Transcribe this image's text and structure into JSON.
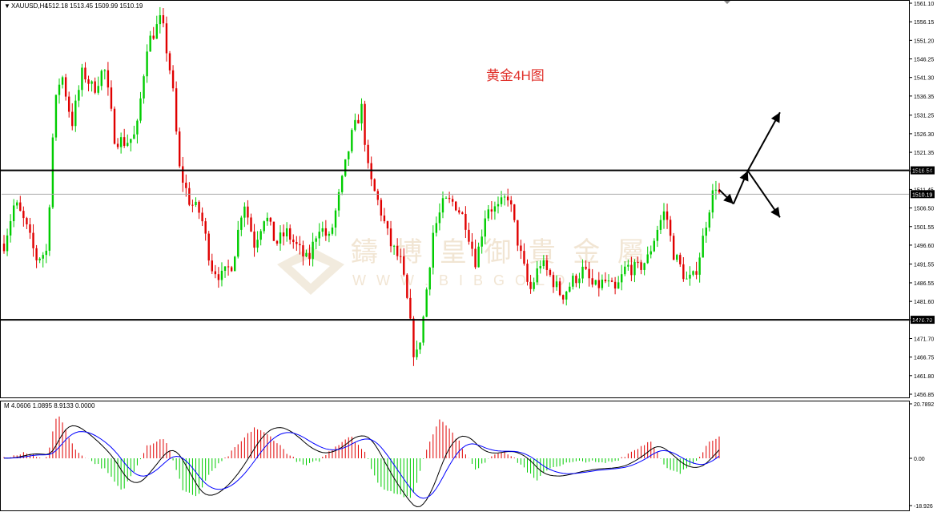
{
  "header": {
    "arrow": "▼",
    "symbol": "XAUUSD,H4",
    "ohlc": "1512.18 1513.45 1509.99 1510.19"
  },
  "annotation": {
    "text": "黄金4H图",
    "color": "#e0302a"
  },
  "watermark": {
    "text": "鑄 博 皇 御 貴 金 屬",
    "url": "W W W . B I B G O L D"
  },
  "indicator": {
    "label": "M 4.0606 1.0895 8.9133 0.0000",
    "ticks": [
      "20.7892",
      "0.00",
      "-18.926"
    ]
  },
  "colors": {
    "up": "#00cc00",
    "down": "#e00000",
    "macd_line": "#000000",
    "signal_line": "#0000ff",
    "level": "#000000"
  },
  "chart_data": {
    "type": "candlestick",
    "y_ticks": [
      "1561.10",
      "1556.15",
      "1551.20",
      "1546.25",
      "1541.30",
      "1536.35",
      "1531.25",
      "1526.30",
      "1521.35",
      "1516.40",
      "1511.45",
      "1506.50",
      "1501.55",
      "1496.60",
      "1491.55",
      "1486.55",
      "1481.60",
      "1476.70",
      "1471.70",
      "1466.75",
      "1461.80",
      "1456.85"
    ],
    "ylim": [
      1456.85,
      1561.1
    ],
    "levels": [
      {
        "value": 1516.54,
        "label": "1516.54"
      },
      {
        "value": 1476.7,
        "label": "1476.70"
      }
    ],
    "current_price": {
      "value": 1510.19,
      "label": "1510.19"
    },
    "forecast_arrows": [
      {
        "from": [
          [
            200,
            1511.4
          ],
          [
            204,
            1507.6
          ]
        ]
      },
      {
        "from": [
          [
            204,
            1507.6
          ],
          [
            208,
            1516.4
          ]
        ]
      },
      {
        "from": [
          [
            208,
            1516.4
          ],
          [
            217,
            1532.0
          ]
        ]
      },
      {
        "from": [
          [
            208,
            1516.4
          ],
          [
            217,
            1504.0
          ]
        ]
      }
    ],
    "anchors": [
      [
        0,
        1497
      ],
      [
        3,
        1508
      ],
      [
        6,
        1502
      ],
      [
        9,
        1493
      ],
      [
        12,
        1495
      ],
      [
        14,
        1532
      ],
      [
        16,
        1543
      ],
      [
        19,
        1529
      ],
      [
        22,
        1543
      ],
      [
        25,
        1538
      ],
      [
        28,
        1544
      ],
      [
        31,
        1525
      ],
      [
        34,
        1524
      ],
      [
        37,
        1526
      ],
      [
        40,
        1550
      ],
      [
        44,
        1557
      ],
      [
        47,
        1540
      ],
      [
        49,
        1517
      ],
      [
        52,
        1508
      ],
      [
        55,
        1505
      ],
      [
        58,
        1491
      ],
      [
        61,
        1488
      ],
      [
        64,
        1492
      ],
      [
        67,
        1509
      ],
      [
        70,
        1497
      ],
      [
        73,
        1505
      ],
      [
        76,
        1497
      ],
      [
        79,
        1500
      ],
      [
        82,
        1496
      ],
      [
        85,
        1492
      ],
      [
        88,
        1502
      ],
      [
        91,
        1498
      ],
      [
        94,
        1511
      ],
      [
        97,
        1525
      ],
      [
        100,
        1533
      ],
      [
        102,
        1515
      ],
      [
        105,
        1507
      ],
      [
        108,
        1497
      ],
      [
        111,
        1492
      ],
      [
        113,
        1480
      ],
      [
        115,
        1465
      ],
      [
        117,
        1475
      ],
      [
        120,
        1500
      ],
      [
        123,
        1508
      ],
      [
        126,
        1508
      ],
      [
        129,
        1503
      ],
      [
        132,
        1492
      ],
      [
        135,
        1507
      ],
      [
        138,
        1506
      ],
      [
        141,
        1510
      ],
      [
        144,
        1496
      ],
      [
        147,
        1484
      ],
      [
        150,
        1492
      ],
      [
        153,
        1488
      ],
      [
        156,
        1483
      ],
      [
        159,
        1487
      ],
      [
        162,
        1490
      ],
      [
        165,
        1485
      ],
      [
        168,
        1487
      ],
      [
        171,
        1484
      ],
      [
        174,
        1491
      ],
      [
        177,
        1490
      ],
      [
        180,
        1493
      ],
      [
        183,
        1502
      ],
      [
        185,
        1506
      ],
      [
        187,
        1495
      ],
      [
        189,
        1491
      ],
      [
        191,
        1487
      ],
      [
        193,
        1488
      ],
      [
        195,
        1496
      ],
      [
        197,
        1506
      ],
      [
        199,
        1513
      ],
      [
        200,
        1510.19
      ]
    ],
    "macd_anchors": [
      [
        0,
        0
      ],
      [
        6,
        2
      ],
      [
        12,
        0
      ],
      [
        15,
        18
      ],
      [
        20,
        3
      ],
      [
        28,
        -4
      ],
      [
        33,
        -13
      ],
      [
        37,
        -3
      ],
      [
        40,
        5
      ],
      [
        45,
        8
      ],
      [
        50,
        -12
      ],
      [
        54,
        -15
      ],
      [
        58,
        -5
      ],
      [
        62,
        0
      ],
      [
        66,
        6
      ],
      [
        70,
        12
      ],
      [
        75,
        8
      ],
      [
        80,
        1
      ],
      [
        84,
        -3
      ],
      [
        88,
        -1
      ],
      [
        93,
        5
      ],
      [
        97,
        9
      ],
      [
        101,
        2
      ],
      [
        105,
        -11
      ],
      [
        109,
        -13
      ],
      [
        114,
        -16
      ],
      [
        118,
        3
      ],
      [
        122,
        16
      ],
      [
        127,
        7
      ],
      [
        132,
        -5
      ],
      [
        136,
        1
      ],
      [
        140,
        3
      ],
      [
        145,
        -3
      ],
      [
        149,
        -9
      ],
      [
        152,
        -4
      ],
      [
        157,
        -2
      ],
      [
        163,
        -1
      ],
      [
        167,
        -2
      ],
      [
        171,
        -1
      ],
      [
        176,
        3
      ],
      [
        181,
        7
      ],
      [
        185,
        -4
      ],
      [
        189,
        -6
      ],
      [
        194,
        0
      ],
      [
        197,
        6
      ],
      [
        200,
        9
      ]
    ]
  }
}
